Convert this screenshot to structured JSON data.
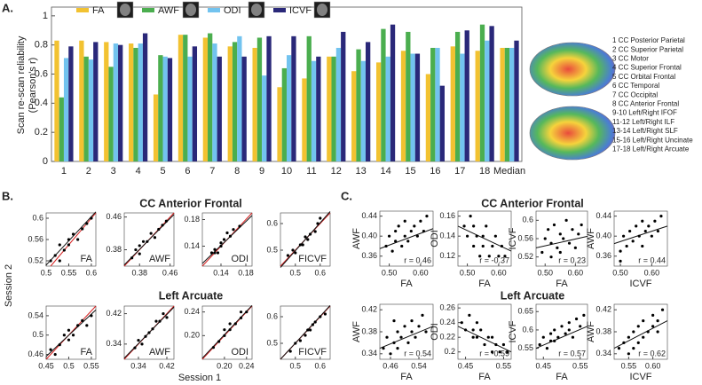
{
  "panel_labels": [
    "A.",
    "B.",
    "C."
  ],
  "section_titles": {
    "b": [
      "CC Anterior Frontal",
      "Left Arcuate"
    ],
    "c": [
      "CC Anterior Frontal",
      "Left Arcuate"
    ]
  },
  "session_labels": {
    "y": "Session 2",
    "x": "Session 1"
  },
  "chart_data": [
    {
      "type": "bar",
      "ylabel": [
        "Scan re-scan reliability",
        "(Pearson's r)"
      ],
      "categories": [
        "1",
        "2",
        "3",
        "4",
        "5",
        "6",
        "7",
        "8",
        "9",
        "10",
        "11",
        "12",
        "13",
        "14",
        "15",
        "16",
        "17",
        "18",
        "Median"
      ],
      "series": [
        {
          "name": "FA",
          "color": "#f2c231",
          "values": [
            0.83,
            0.83,
            0.82,
            0.81,
            0.46,
            0.87,
            0.85,
            0.79,
            0.78,
            0.51,
            0.57,
            0.72,
            0.62,
            0.68,
            0.76,
            0.6,
            0.79,
            0.76,
            0.78
          ]
        },
        {
          "name": "AWF",
          "color": "#4bae4f",
          "values": [
            0.44,
            0.72,
            0.65,
            0.78,
            0.73,
            0.87,
            0.88,
            0.82,
            0.85,
            0.64,
            0.86,
            0.72,
            0.77,
            0.91,
            0.89,
            0.78,
            0.89,
            0.94,
            0.78
          ]
        },
        {
          "name": "ODI",
          "color": "#72c3ef",
          "values": [
            0.71,
            0.7,
            0.81,
            0.81,
            0.72,
            0.72,
            0.81,
            0.86,
            0.59,
            0.73,
            0.69,
            0.78,
            0.69,
            0.72,
            0.74,
            0.78,
            0.74,
            0.83,
            0.78
          ]
        },
        {
          "name": "ICVF",
          "color": "#2a2879",
          "values": [
            0.79,
            0.82,
            0.8,
            0.88,
            0.71,
            0.79,
            0.72,
            0.72,
            0.86,
            0.86,
            0.72,
            0.89,
            0.82,
            0.94,
            0.74,
            0.52,
            0.9,
            0.93,
            0.83
          ]
        }
      ],
      "ylim": [
        0,
        1.06
      ],
      "yticks": [
        0,
        0.2,
        0.4,
        0.6,
        0.8,
        1
      ],
      "legend": "top",
      "annotations": [
        "1 CC Posterior Parietal",
        "2 CC Superior Parietal",
        "3 CC Motor",
        "4 CC Superior Frontal",
        "5 CC Orbital Frontal",
        "6 CC Temporal",
        "7 CC Occipital",
        "8 CC Anterior Frontal",
        "9-10 Left/Right IFOF",
        "11-12 Left/Right ILF",
        "13-14 Left/Right SLF",
        "15-16 Left/Right Uncinate",
        "17-18 Left/Right Arcuate"
      ]
    },
    {
      "type": "scatter",
      "label": "FA",
      "x": [
        0.51,
        0.52,
        0.53,
        0.53,
        0.54,
        0.55,
        0.55,
        0.56,
        0.57,
        0.58,
        0.59,
        0.6
      ],
      "y": [
        0.52,
        0.53,
        0.52,
        0.55,
        0.54,
        0.56,
        0.55,
        0.57,
        0.56,
        0.58,
        0.59,
        0.6
      ],
      "xlim": [
        0.5,
        0.61
      ],
      "ylim": [
        0.51,
        0.61
      ],
      "xticks": [
        0.5,
        0.55,
        0.6
      ],
      "yticks": [
        0.52,
        0.56,
        0.6
      ],
      "identity_line": true,
      "fit": {
        "x": [
          0.5,
          0.61
        ],
        "y": [
          0.512,
          0.612
        ]
      }
    },
    {
      "type": "scatter",
      "label": "AWF",
      "x": [
        0.36,
        0.37,
        0.38,
        0.38,
        0.39,
        0.4,
        0.41,
        0.42,
        0.43,
        0.44,
        0.45
      ],
      "y": [
        0.36,
        0.38,
        0.37,
        0.39,
        0.4,
        0.4,
        0.42,
        0.41,
        0.43,
        0.44,
        0.45
      ],
      "xlim": [
        0.34,
        0.47
      ],
      "ylim": [
        0.34,
        0.47
      ],
      "xticks": [
        0.38,
        0.46
      ],
      "yticks": [
        0.38,
        0.46
      ],
      "identity_line": true,
      "fit": {
        "x": [
          0.34,
          0.47
        ],
        "y": [
          0.343,
          0.466
        ]
      }
    },
    {
      "type": "scatter",
      "label": "ODI",
      "x": [
        0.125,
        0.13,
        0.13,
        0.135,
        0.14,
        0.14,
        0.145,
        0.15,
        0.155,
        0.16,
        0.17
      ],
      "y": [
        0.13,
        0.13,
        0.135,
        0.13,
        0.14,
        0.145,
        0.15,
        0.16,
        0.155,
        0.165,
        0.17
      ],
      "xlim": [
        0.11,
        0.19
      ],
      "ylim": [
        0.11,
        0.19
      ],
      "xticks": [
        0.14,
        0.18
      ],
      "yticks": [
        0.14,
        0.18
      ],
      "identity_line": true,
      "fit": {
        "x": [
          0.11,
          0.19
        ],
        "y": [
          0.114,
          0.186
        ]
      }
    },
    {
      "type": "scatter",
      "label": "FICVF",
      "x": [
        0.47,
        0.49,
        0.5,
        0.52,
        0.53,
        0.54,
        0.55,
        0.56,
        0.58,
        0.59,
        0.6
      ],
      "y": [
        0.48,
        0.5,
        0.49,
        0.52,
        0.52,
        0.55,
        0.54,
        0.56,
        0.57,
        0.6,
        0.62
      ],
      "xlim": [
        0.44,
        0.64
      ],
      "ylim": [
        0.44,
        0.64
      ],
      "xticks": [
        0.5,
        0.6
      ],
      "yticks": [
        0.5,
        0.6
      ],
      "identity_line": true,
      "fit": {
        "x": [
          0.44,
          0.64
        ],
        "y": [
          0.435,
          0.645
        ]
      }
    },
    {
      "type": "scatter",
      "label": "FA",
      "x": [
        0.46,
        0.47,
        0.48,
        0.49,
        0.5,
        0.5,
        0.51,
        0.52,
        0.53,
        0.54,
        0.55
      ],
      "y": [
        0.47,
        0.46,
        0.48,
        0.5,
        0.49,
        0.51,
        0.5,
        0.52,
        0.53,
        0.52,
        0.54
      ],
      "xlim": [
        0.45,
        0.56
      ],
      "ylim": [
        0.45,
        0.56
      ],
      "xticks": [
        0.45,
        0.5,
        0.55
      ],
      "yticks": [
        0.46,
        0.5,
        0.54
      ],
      "identity_line": true,
      "fit": {
        "x": [
          0.45,
          0.56
        ],
        "y": [
          0.456,
          0.552
        ]
      }
    },
    {
      "type": "scatter",
      "label": "AWF",
      "x": [
        0.33,
        0.34,
        0.35,
        0.36,
        0.37,
        0.38,
        0.39,
        0.4,
        0.41,
        0.42
      ],
      "y": [
        0.33,
        0.35,
        0.34,
        0.36,
        0.37,
        0.38,
        0.4,
        0.4,
        0.42,
        0.41
      ],
      "xlim": [
        0.3,
        0.44
      ],
      "ylim": [
        0.3,
        0.44
      ],
      "xticks": [
        0.34,
        0.42
      ],
      "yticks": [
        0.34,
        0.42
      ],
      "identity_line": true,
      "fit": {
        "x": [
          0.3,
          0.44
        ],
        "y": [
          0.303,
          0.437
        ]
      }
    },
    {
      "type": "scatter",
      "label": "ODI",
      "x": [
        0.18,
        0.19,
        0.2,
        0.2,
        0.21,
        0.21,
        0.22,
        0.23,
        0.23,
        0.24
      ],
      "y": [
        0.18,
        0.19,
        0.2,
        0.21,
        0.21,
        0.22,
        0.22,
        0.23,
        0.24,
        0.24
      ],
      "xlim": [
        0.16,
        0.25
      ],
      "ylim": [
        0.16,
        0.25
      ],
      "xticks": [
        {
          "value": 0.2,
          "label": "0.20"
        },
        0.24
      ],
      "yticks": [
        {
          "value": 0.2,
          "label": "0.20"
        },
        0.24
      ],
      "identity_line": true,
      "fit": {
        "x": [
          0.16,
          0.25
        ],
        "y": [
          0.162,
          0.251
        ]
      }
    },
    {
      "type": "scatter",
      "label": "FICVF",
      "x": [
        0.48,
        0.5,
        0.52,
        0.54,
        0.55,
        0.56,
        0.57,
        0.58,
        0.6,
        0.62
      ],
      "y": [
        0.47,
        0.5,
        0.51,
        0.53,
        0.55,
        0.55,
        0.57,
        0.58,
        0.6,
        0.61
      ],
      "xlim": [
        0.44,
        0.64
      ],
      "ylim": [
        0.44,
        0.64
      ],
      "xticks": [
        0.5,
        0.6
      ],
      "yticks": [
        0.5,
        0.6
      ],
      "identity_line": true,
      "fit": {
        "x": [
          0.44,
          0.64
        ],
        "y": [
          0.44,
          0.642
        ]
      }
    },
    {
      "type": "scatter",
      "xlabel": "FA",
      "ylabel": "AWF",
      "annotation": "r = 0.46",
      "x": [
        0.49,
        0.5,
        0.51,
        0.52,
        0.52,
        0.53,
        0.54,
        0.55,
        0.55,
        0.56,
        0.57,
        0.58,
        0.59,
        0.6,
        0.61,
        0.62
      ],
      "y": [
        0.38,
        0.4,
        0.37,
        0.41,
        0.39,
        0.42,
        0.38,
        0.4,
        0.43,
        0.39,
        0.41,
        0.42,
        0.4,
        0.43,
        0.41,
        0.44
      ],
      "xlim": [
        0.47,
        0.64
      ],
      "ylim": [
        0.34,
        0.45
      ],
      "xticks": [
        {
          "value": 0.5,
          "label": "0.50"
        },
        {
          "value": 0.6,
          "label": "0.60"
        }
      ],
      "yticks": [
        0.36,
        {
          "value": 0.4,
          "label": "0.40"
        },
        0.44
      ],
      "fit": {
        "x": [
          0.47,
          0.64
        ],
        "y": [
          0.375,
          0.415
        ]
      }
    },
    {
      "type": "scatter",
      "xlabel": "FA",
      "ylabel": "ODI",
      "annotation": "r = -0.37",
      "x": [
        0.49,
        0.5,
        0.51,
        0.52,
        0.52,
        0.53,
        0.54,
        0.55,
        0.55,
        0.56,
        0.57,
        0.58,
        0.59,
        0.6,
        0.61,
        0.62
      ],
      "y": [
        0.15,
        0.14,
        0.16,
        0.13,
        0.15,
        0.14,
        0.12,
        0.14,
        0.13,
        0.15,
        0.12,
        0.13,
        0.14,
        0.12,
        0.13,
        0.12
      ],
      "xlim": [
        0.47,
        0.64
      ],
      "ylim": [
        0.11,
        0.165
      ],
      "xticks": [
        {
          "value": 0.5,
          "label": "0.50"
        },
        {
          "value": 0.6,
          "label": "0.60"
        }
      ],
      "yticks": [
        0.12,
        0.14,
        0.16
      ],
      "fit": {
        "x": [
          0.47,
          0.64
        ],
        "y": [
          0.15,
          0.125
        ]
      }
    },
    {
      "type": "scatter",
      "xlabel": "FA",
      "ylabel": "ICVF",
      "annotation": "r = 0.23",
      "x": [
        0.49,
        0.5,
        0.51,
        0.52,
        0.52,
        0.53,
        0.54,
        0.55,
        0.55,
        0.56,
        0.57,
        0.58,
        0.59,
        0.6,
        0.61,
        0.62
      ],
      "y": [
        0.53,
        0.56,
        0.58,
        0.52,
        0.55,
        0.59,
        0.54,
        0.57,
        0.53,
        0.56,
        0.6,
        0.55,
        0.58,
        0.54,
        0.57,
        0.59
      ],
      "xlim": [
        0.47,
        0.64
      ],
      "ylim": [
        0.5,
        0.62
      ],
      "xticks": [
        {
          "value": 0.5,
          "label": "0.50"
        },
        {
          "value": 0.6,
          "label": "0.60"
        }
      ],
      "yticks": [
        0.52,
        0.56,
        0.6
      ],
      "fit": {
        "x": [
          0.47,
          0.64
        ],
        "y": [
          0.54,
          0.565
        ]
      }
    },
    {
      "type": "scatter",
      "xlabel": "ICVF",
      "ylabel": "AWF",
      "annotation": "r = 0.44",
      "x": [
        0.5,
        0.51,
        0.52,
        0.53,
        0.54,
        0.55,
        0.56,
        0.57,
        0.57,
        0.58,
        0.59,
        0.6,
        0.61,
        0.62,
        0.63,
        0.5
      ],
      "y": [
        0.37,
        0.4,
        0.38,
        0.41,
        0.39,
        0.42,
        0.4,
        0.38,
        0.43,
        0.41,
        0.42,
        0.4,
        0.43,
        0.41,
        0.44,
        0.35
      ],
      "xlim": [
        0.48,
        0.65
      ],
      "ylim": [
        0.34,
        0.45
      ],
      "xticks": [
        {
          "value": 0.5,
          "label": "0.50"
        },
        {
          "value": 0.6,
          "label": "0.60"
        }
      ],
      "yticks": [
        0.36,
        {
          "value": 0.4,
          "label": "0.40"
        },
        0.44
      ],
      "fit": {
        "x": [
          0.48,
          0.65
        ],
        "y": [
          0.385,
          0.42
        ]
      }
    },
    {
      "type": "scatter",
      "xlabel": "FA",
      "ylabel": "AWF",
      "annotation": "r = 0.54",
      "x": [
        0.44,
        0.45,
        0.46,
        0.47,
        0.48,
        0.48,
        0.49,
        0.5,
        0.51,
        0.52,
        0.52,
        0.53,
        0.54,
        0.55,
        0.56,
        0.47
      ],
      "y": [
        0.35,
        0.37,
        0.34,
        0.36,
        0.38,
        0.35,
        0.37,
        0.39,
        0.36,
        0.38,
        0.4,
        0.37,
        0.39,
        0.41,
        0.38,
        0.4
      ],
      "xlim": [
        0.43,
        0.58
      ],
      "ylim": [
        0.33,
        0.43
      ],
      "xticks": [
        0.46,
        0.54
      ],
      "yticks": [
        0.34,
        0.38,
        0.42
      ],
      "fit": {
        "x": [
          0.43,
          0.58
        ],
        "y": [
          0.35,
          0.39
        ]
      }
    },
    {
      "type": "scatter",
      "xlabel": "FA",
      "ylabel": "ODI",
      "annotation": "r = -0.59",
      "x": [
        0.44,
        0.45,
        0.46,
        0.47,
        0.48,
        0.48,
        0.49,
        0.5,
        0.51,
        0.52,
        0.52,
        0.53,
        0.54,
        0.55,
        0.56,
        0.47
      ],
      "y": [
        0.24,
        0.23,
        0.25,
        0.22,
        0.24,
        0.22,
        0.23,
        0.21,
        0.22,
        0.2,
        0.22,
        0.21,
        0.2,
        0.21,
        0.2,
        0.23
      ],
      "xlim": [
        0.43,
        0.57
      ],
      "ylim": [
        0.19,
        0.265
      ],
      "xticks": [
        0.45,
        0.55
      ],
      "yticks": [
        0.2,
        0.22,
        0.24,
        0.26
      ],
      "fit": {
        "x": [
          0.43,
          0.57
        ],
        "y": [
          0.235,
          0.2
        ]
      }
    },
    {
      "type": "scatter",
      "xlabel": "FA",
      "ylabel": "ICVF",
      "annotation": "r = 0.57",
      "x": [
        0.44,
        0.45,
        0.46,
        0.47,
        0.48,
        0.48,
        0.49,
        0.5,
        0.51,
        0.52,
        0.52,
        0.53,
        0.54,
        0.55,
        0.56,
        0.47
      ],
      "y": [
        0.56,
        0.58,
        0.55,
        0.59,
        0.57,
        0.6,
        0.58,
        0.61,
        0.59,
        0.62,
        0.6,
        0.58,
        0.63,
        0.61,
        0.64,
        0.57
      ],
      "xlim": [
        0.43,
        0.57
      ],
      "ylim": [
        0.52,
        0.67
      ],
      "xticks": [
        0.45,
        0.55
      ],
      "yticks": [
        0.55,
        0.6,
        0.65
      ],
      "fit": {
        "x": [
          0.43,
          0.57
        ],
        "y": [
          0.55,
          0.61
        ]
      }
    },
    {
      "type": "scatter",
      "xlabel": "ICVF",
      "ylabel": "AWF",
      "annotation": "r = 0.62",
      "x": [
        0.53,
        0.54,
        0.55,
        0.55,
        0.56,
        0.57,
        0.57,
        0.58,
        0.58,
        0.59,
        0.6,
        0.6,
        0.61,
        0.61,
        0.62,
        0.56
      ],
      "y": [
        0.35,
        0.36,
        0.34,
        0.37,
        0.38,
        0.36,
        0.39,
        0.37,
        0.4,
        0.38,
        0.39,
        0.41,
        0.38,
        0.4,
        0.42,
        0.35
      ],
      "xlim": [
        0.52,
        0.63
      ],
      "ylim": [
        0.33,
        0.43
      ],
      "xticks": [
        0.55,
        {
          "value": 0.6,
          "label": "0.60"
        }
      ],
      "yticks": [
        0.34,
        0.38,
        0.42
      ],
      "fit": {
        "x": [
          0.52,
          0.63
        ],
        "y": [
          0.35,
          0.4
        ]
      }
    }
  ]
}
